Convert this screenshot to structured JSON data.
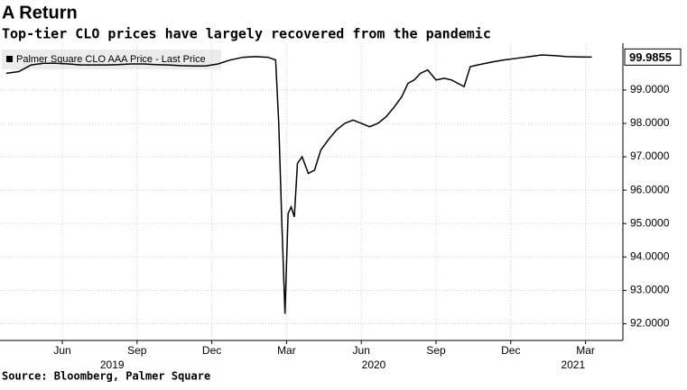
{
  "chart_data": {
    "type": "line",
    "title": "A Return",
    "subtitle": "Top-tier CLO prices have largely recovered from the pandemic",
    "source": "Source: Bloomberg, Palmer Square",
    "grid": true,
    "xlim": [
      "2019-04",
      "2021-04"
    ],
    "ylim": [
      91.5,
      100.4
    ],
    "yticks": [
      {
        "value": 92,
        "label": "92.0000"
      },
      {
        "value": 93,
        "label": "93.0000"
      },
      {
        "value": 94,
        "label": "94.0000"
      },
      {
        "value": 95,
        "label": "95.0000"
      },
      {
        "value": 96,
        "label": "96.0000"
      },
      {
        "value": 97,
        "label": "97.0000"
      },
      {
        "value": 98,
        "label": "98.0000"
      },
      {
        "value": 99,
        "label": "99.0000"
      }
    ],
    "xticks": [
      {
        "value": "2019-06",
        "label": "Jun"
      },
      {
        "value": "2019-09",
        "label": "Sep"
      },
      {
        "value": "2019-12",
        "label": "Dec"
      },
      {
        "value": "2020-03",
        "label": "Mar"
      },
      {
        "value": "2020-06",
        "label": "Jun"
      },
      {
        "value": "2020-09",
        "label": "Sep"
      },
      {
        "value": "2020-12",
        "label": "Dec"
      },
      {
        "value": "2021-03",
        "label": "Mar"
      }
    ],
    "year_ticks": [
      2019,
      2020,
      2021
    ],
    "last_price": 99.9855,
    "x": [
      "2019-04",
      "2019-04",
      "2019-05",
      "2019-05",
      "2019-06",
      "2019-06",
      "2019-07",
      "2019-07",
      "2019-08",
      "2019-08",
      "2019-09",
      "2019-09",
      "2019-10",
      "2019-10",
      "2019-11",
      "2019-11",
      "2019-12",
      "2019-12",
      "2020-01",
      "2020-01",
      "2020-02",
      "2020-02",
      "2020-03",
      "2020-03",
      "2020-03",
      "2020-03",
      "2020-03",
      "2020-03",
      "2020-03",
      "2020-03",
      "2020-04",
      "2020-04",
      "2020-04",
      "2020-04",
      "2020-05",
      "2020-05",
      "2020-05",
      "2020-06",
      "2020-06",
      "2020-06",
      "2020-07",
      "2020-07",
      "2020-07",
      "2020-08",
      "2020-08",
      "2020-08",
      "2020-08",
      "2020-09",
      "2020-09",
      "2020-09",
      "2020-10",
      "2020-10",
      "2020-10",
      "2020-10",
      "2020-11",
      "2020-11",
      "2020-11",
      "2020-12",
      "2020-12",
      "2021-01",
      "2021-01",
      "2021-02",
      "2021-02",
      "2021-03",
      "2021-03"
    ],
    "series": [
      {
        "name": "Palmer Square CLO AAA Price - Last Price",
        "color": "#000000",
        "values": [
          99.5,
          99.55,
          99.75,
          99.8,
          99.8,
          99.78,
          99.75,
          99.75,
          99.75,
          99.76,
          99.78,
          99.78,
          99.76,
          99.75,
          99.73,
          99.72,
          99.72,
          99.78,
          99.9,
          99.98,
          100.0,
          99.98,
          99.9,
          98.0,
          95.0,
          92.3,
          95.3,
          95.5,
          95.2,
          96.8,
          97.0,
          96.5,
          96.6,
          97.2,
          97.5,
          97.8,
          98.0,
          98.1,
          98.0,
          97.9,
          98.0,
          98.2,
          98.5,
          98.8,
          99.2,
          99.3,
          99.5,
          99.6,
          99.3,
          99.35,
          99.3,
          99.2,
          99.1,
          99.7,
          99.75,
          99.8,
          99.85,
          99.9,
          99.95,
          100.0,
          100.05,
          100.03,
          100.0,
          99.99,
          99.9855
        ]
      }
    ]
  }
}
